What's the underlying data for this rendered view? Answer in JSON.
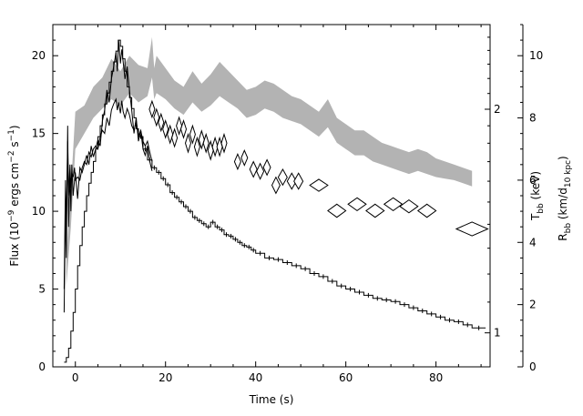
{
  "chart_data": {
    "type": "line",
    "title": "",
    "xlabel": "Time (s)",
    "xlim": [
      -5,
      92
    ],
    "x_ticks": [
      "0",
      "20",
      "40",
      "60",
      "80"
    ],
    "x_tick_values": [
      0,
      20,
      40,
      60,
      80
    ],
    "left_axis": {
      "label": "Flux (10⁻⁹ ergs cm⁻² s⁻¹)",
      "ylim": [
        0,
        22
      ],
      "ticks": [
        "0",
        "5",
        "10",
        "15",
        "20"
      ],
      "tick_values": [
        0,
        5,
        10,
        15,
        20
      ]
    },
    "kT_axis": {
      "label": "T_bb (keV)",
      "scale": "log",
      "ylim": [
        0.9,
        2.6
      ],
      "ticks": [
        "1",
        "2"
      ],
      "tick_values": [
        1,
        2
      ]
    },
    "radius_axis": {
      "label": "R_bb (km/d_10 kpc)",
      "ylim": [
        0,
        11
      ],
      "ticks": [
        "0",
        "2",
        "4",
        "6",
        "8",
        "10"
      ],
      "tick_values": [
        0,
        2,
        4,
        6,
        8,
        10
      ]
    },
    "series": [
      {
        "style": "histogram",
        "axis": "left",
        "x": [
          -2.5,
          -2,
          -1.5,
          -1,
          -0.5,
          0,
          0.5,
          1,
          1.5,
          2,
          2.5,
          3,
          3.5,
          4,
          4.5,
          5,
          5.5,
          6,
          6.5,
          7,
          7.5,
          8,
          8.5,
          9,
          9.5,
          10,
          10.5,
          11,
          11.5,
          12,
          12.5,
          13,
          13.5,
          14,
          15,
          16,
          17,
          18,
          19,
          20,
          21,
          22,
          23,
          24,
          25,
          26,
          27,
          28,
          29,
          30,
          31,
          32,
          33,
          34,
          35,
          36,
          37,
          38,
          39,
          40,
          42,
          44,
          46,
          48,
          50,
          52,
          54,
          56,
          58,
          60,
          62,
          64,
          66,
          68,
          70,
          72,
          74,
          76,
          78,
          80,
          82,
          84,
          86,
          88,
          91
        ],
        "y": [
          0.3,
          0.6,
          1.2,
          2.3,
          3.5,
          5.0,
          6.5,
          7.8,
          9.0,
          10.0,
          11.0,
          11.8,
          12.5,
          13.2,
          14.0,
          14.8,
          15.5,
          16.2,
          16.9,
          17.6,
          18.3,
          19.0,
          19.6,
          20.3,
          21.0,
          20.6,
          19.8,
          19.0,
          18.0,
          17.3,
          16.6,
          16.0,
          15.3,
          14.8,
          14.0,
          13.3,
          12.8,
          12.5,
          12.1,
          11.7,
          11.2,
          10.9,
          10.6,
          10.3,
          10.0,
          9.6,
          9.4,
          9.2,
          9.0,
          9.3,
          9.0,
          8.8,
          8.5,
          8.4,
          8.2,
          8.0,
          7.8,
          7.7,
          7.5,
          7.3,
          7.0,
          6.9,
          6.7,
          6.5,
          6.3,
          6.0,
          5.8,
          5.5,
          5.2,
          5.0,
          4.8,
          4.6,
          4.4,
          4.3,
          4.2,
          4.0,
          3.8,
          3.6,
          3.4,
          3.2,
          3.0,
          2.9,
          2.7,
          2.5,
          2.5
        ]
      },
      {
        "style": "band",
        "axis": "radius",
        "x": [
          -2,
          -1,
          0,
          2,
          4,
          6,
          8,
          10,
          12,
          14,
          16,
          17,
          17.5,
          18,
          20,
          22,
          24,
          26,
          28,
          30,
          32,
          34,
          36,
          38,
          40,
          42,
          44,
          46,
          48,
          50,
          52,
          54,
          56,
          58,
          60,
          62,
          64,
          66,
          68,
          70,
          72,
          74,
          76,
          78,
          80,
          82,
          84,
          86,
          88
        ],
        "y_low": [
          2.6,
          4.5,
          7.0,
          7.5,
          8.0,
          8.3,
          8.6,
          8.4,
          8.8,
          8.5,
          8.7,
          9.3,
          8.6,
          8.8,
          8.6,
          8.3,
          8.1,
          8.5,
          8.2,
          8.4,
          8.7,
          8.5,
          8.3,
          8.0,
          8.1,
          8.3,
          8.2,
          8.0,
          7.9,
          7.8,
          7.6,
          7.4,
          7.7,
          7.2,
          7.0,
          6.8,
          6.8,
          6.6,
          6.5,
          6.4,
          6.3,
          6.2,
          6.3,
          6.2,
          6.1,
          6.05,
          6.0,
          5.9,
          5.8
        ],
        "y_high": [
          3.6,
          5.7,
          8.2,
          8.4,
          9.0,
          9.3,
          9.9,
          9.5,
          10.0,
          9.7,
          9.6,
          10.6,
          9.6,
          10.0,
          9.6,
          9.2,
          9.0,
          9.5,
          9.1,
          9.4,
          9.8,
          9.5,
          9.2,
          8.9,
          9.0,
          9.2,
          9.1,
          8.9,
          8.7,
          8.6,
          8.4,
          8.2,
          8.6,
          8.0,
          7.8,
          7.6,
          7.6,
          7.4,
          7.2,
          7.1,
          7.0,
          6.9,
          7.0,
          6.9,
          6.7,
          6.6,
          6.5,
          6.4,
          6.3
        ]
      },
      {
        "style": "diamonds",
        "axis": "kT",
        "x": [
          17,
          18,
          19,
          20,
          21,
          22,
          23,
          24,
          25,
          26,
          27,
          28,
          29,
          30,
          31,
          32,
          33,
          36,
          37.5,
          39.5,
          41,
          42.5,
          44.5,
          46,
          48,
          49.5,
          54,
          58,
          62.5,
          66.5,
          70.5,
          74,
          78,
          88
        ],
        "y": [
          2.0,
          1.95,
          1.92,
          1.88,
          1.85,
          1.83,
          1.9,
          1.88,
          1.8,
          1.85,
          1.78,
          1.82,
          1.8,
          1.76,
          1.78,
          1.78,
          1.8,
          1.7,
          1.72,
          1.66,
          1.65,
          1.67,
          1.58,
          1.62,
          1.6,
          1.6,
          1.58,
          1.46,
          1.49,
          1.46,
          1.49,
          1.48,
          1.46,
          1.38
        ],
        "x_err": [
          0.4,
          0.4,
          0.4,
          0.4,
          0.4,
          0.4,
          0.4,
          0.4,
          0.4,
          0.4,
          0.4,
          0.5,
          0.5,
          0.5,
          0.5,
          0.5,
          0.5,
          0.7,
          0.7,
          0.8,
          0.8,
          0.8,
          0.9,
          1,
          1,
          1,
          2,
          2,
          2,
          2,
          2,
          2,
          2,
          3.5
        ],
        "y_err": [
          0.05,
          0.05,
          0.05,
          0.05,
          0.05,
          0.05,
          0.05,
          0.05,
          0.05,
          0.05,
          0.05,
          0.05,
          0.05,
          0.05,
          0.05,
          0.05,
          0.05,
          0.04,
          0.04,
          0.04,
          0.04,
          0.04,
          0.04,
          0.04,
          0.04,
          0.04,
          0.03,
          0.03,
          0.03,
          0.03,
          0.03,
          0.03,
          0.03,
          0.03
        ]
      },
      {
        "style": "lines",
        "axis": "left",
        "x": [
          -2.5,
          -2.2,
          -2,
          -1.7,
          -1.5,
          -1.2,
          -1,
          -0.8,
          -0.5,
          -0.2,
          0,
          0.5,
          1,
          1.5,
          2,
          2.5,
          3,
          3.5,
          4,
          4.5,
          5,
          5.5,
          6,
          6.5,
          7,
          7.5,
          8,
          8.5,
          9,
          9.3,
          9.6,
          10,
          10.3,
          10.6,
          11,
          11.5,
          12,
          12.5,
          13,
          13.5,
          14,
          14.5,
          15,
          15.5,
          16,
          16.5,
          17
        ],
        "y1": [
          3.5,
          10.5,
          7.0,
          15.5,
          9.0,
          12.5,
          10.0,
          13.0,
          11.0,
          12.0,
          12.5,
          10.8,
          12.8,
          12.5,
          13.0,
          13.6,
          13.0,
          14.2,
          13.5,
          14.0,
          14.6,
          14.2,
          15.8,
          16.5,
          17.8,
          17.0,
          18.5,
          19.3,
          20.2,
          19.0,
          21.0,
          19.5,
          20.4,
          19.6,
          18.5,
          19.3,
          17.8,
          16.5,
          15.0,
          16.0,
          14.5,
          15.2,
          14.0,
          13.6,
          14.2,
          13.2,
          12.6
        ],
        "y2": [
          5.0,
          12.0,
          9.0,
          14.5,
          11.0,
          13.0,
          11.5,
          12.5,
          12.2,
          12.8,
          12.0,
          12.2,
          12.0,
          12.8,
          13.2,
          13.0,
          13.8,
          13.5,
          14.0,
          14.2,
          14.0,
          14.8,
          15.2,
          15.0,
          16.0,
          15.5,
          16.5,
          16.9,
          17.2,
          16.5,
          17.0,
          16.3,
          17.1,
          16.4,
          16.0,
          16.6,
          16.2,
          15.5,
          15.2,
          15.8,
          14.8,
          15.2,
          14.5,
          14.2,
          14.5,
          13.8,
          13.2
        ]
      }
    ]
  }
}
